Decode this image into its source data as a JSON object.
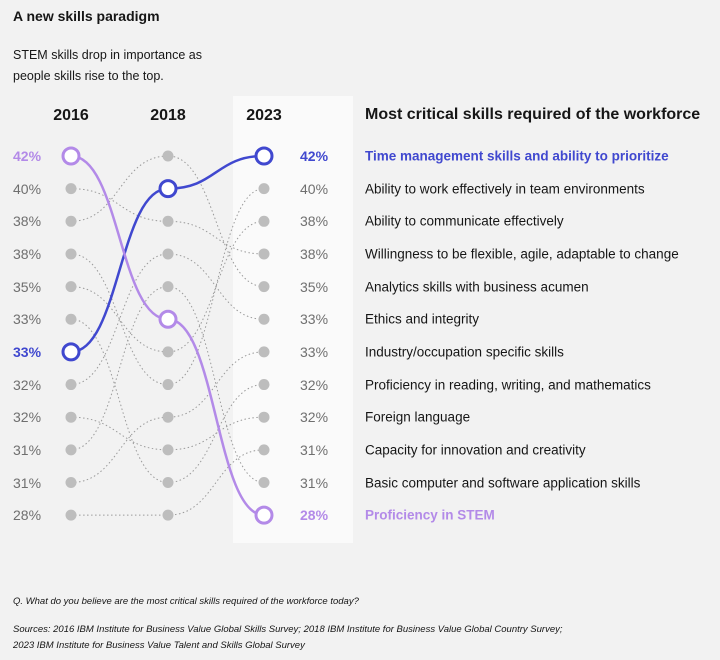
{
  "title": "A new skills paradigm",
  "subtitle": "STEM skills drop in importance as people skills rise to the top.",
  "column_header": "Most critical skills required of the workforce",
  "footnote_question": "Q. What do you believe are the most critical skills required of the workforce today?",
  "footnote_sources": "Sources: 2016 IBM Institute for Business Value Global Skills Survey; 2018 IBM Institute for Business Value Global Country Survey; 2023 IBM Institute for Business Value Talent and Skills Global Survey",
  "colors": {
    "time_mgmt": "#4048cf",
    "stem": "#b38ae8",
    "gray_dot": "#bdbdbd",
    "text_gray": "#6f6f6f"
  },
  "chart_data": {
    "type": "slope",
    "years": [
      "2016",
      "2018",
      "2023"
    ],
    "values_2016": [
      "42%",
      "40%",
      "38%",
      "38%",
      "35%",
      "33%",
      "33%",
      "32%",
      "32%",
      "31%",
      "31%",
      "28%"
    ],
    "values_2023": [
      "42%",
      "40%",
      "38%",
      "38%",
      "35%",
      "33%",
      "33%",
      "32%",
      "32%",
      "31%",
      "31%",
      "28%"
    ],
    "skills_2023_order": [
      "Time management skills and ability to prioritize",
      "Ability to work effectively in team environments",
      "Ability to communicate effectively",
      "Willingness to be flexible, agile, adaptable to change",
      "Analytics skills with business acumen",
      "Ethics and integrity",
      "Industry/occupation specific skills",
      "Proficiency in reading, writing, and mathematics",
      "Foreign language",
      "Capacity for innovation and creativity",
      "Basic computer and software application skills",
      "Proficiency in STEM"
    ],
    "highlighted_series": [
      {
        "name": "Time management skills and ability to prioritize",
        "ranks": [
          7,
          2,
          1
        ],
        "color_key": "time_mgmt"
      },
      {
        "name": "Proficiency in STEM",
        "ranks": [
          1,
          6,
          12
        ],
        "color_key": "stem"
      }
    ],
    "other_series_ranks": [
      [
        2,
        3,
        4
      ],
      [
        3,
        1,
        5
      ],
      [
        4,
        8,
        2
      ],
      [
        5,
        7,
        3
      ],
      [
        6,
        11,
        8
      ],
      [
        8,
        4,
        6
      ],
      [
        9,
        10,
        9
      ],
      [
        10,
        5,
        11
      ],
      [
        11,
        9,
        7
      ],
      [
        12,
        12,
        10
      ]
    ]
  }
}
